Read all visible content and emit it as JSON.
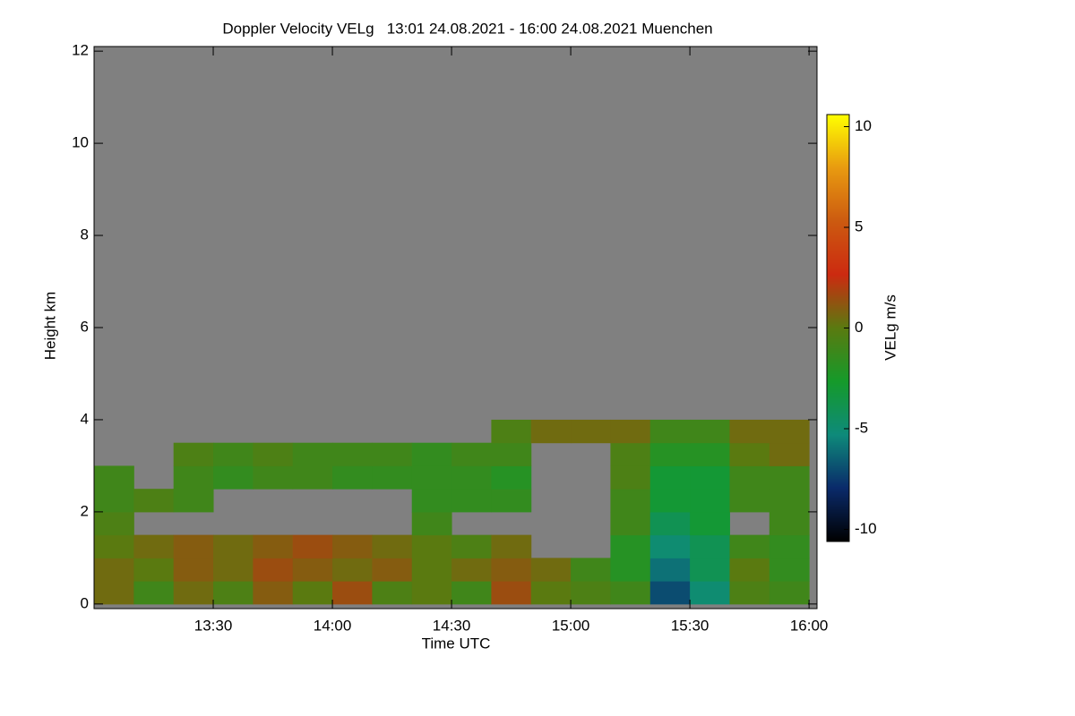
{
  "chart_data": {
    "type": "heatmap",
    "title": "Doppler Velocity VELg   13:01 24.08.2021 - 16:00 24.08.2021 Muenchen",
    "x_label": "Time UTC",
    "y_label": "Height km",
    "colorbar_label": "VELg m/s",
    "xlim": [
      780,
      962
    ],
    "xticks": [
      {
        "value": 810,
        "label": "13:30"
      },
      {
        "value": 840,
        "label": "14:00"
      },
      {
        "value": 870,
        "label": "14:30"
      },
      {
        "value": 900,
        "label": "15:00"
      },
      {
        "value": 930,
        "label": "15:30"
      },
      {
        "value": 960,
        "label": "16:00"
      }
    ],
    "ylim": [
      -0.1,
      12.1
    ],
    "yticks": [
      0,
      2,
      4,
      6,
      8,
      10,
      12
    ],
    "zlim": [
      -10.6,
      10.6
    ],
    "zticks": [
      -10,
      -5,
      0,
      5,
      10
    ],
    "background": "#808080",
    "colorscale": [
      "#000000",
      "#0a2a6a",
      "#0e8a7a",
      "#159a2a",
      "#5a7a10",
      "#cc2a10",
      "#cc5a10",
      "#e89a10",
      "#ffff00"
    ],
    "xbins": [
      780,
      790,
      800,
      810,
      820,
      830,
      840,
      850,
      860,
      870,
      880,
      890,
      900,
      910,
      920,
      930,
      940,
      950,
      960
    ],
    "ybins": [
      0,
      0.5,
      1,
      1.5,
      2,
      2.5,
      3,
      3.5,
      4
    ],
    "z": [
      [
        0.5,
        -1,
        0.5,
        -0.5,
        1,
        0,
        1.5,
        -0.5,
        0,
        -1,
        1.5,
        0,
        -0.5,
        -1,
        -7,
        -5,
        -0.5,
        -1
      ],
      [
        0.5,
        0,
        1,
        0.5,
        1.5,
        1,
        0.5,
        1,
        0,
        0.5,
        1,
        0.5,
        -1,
        -2,
        -6,
        -4,
        0,
        -1.5
      ],
      [
        0,
        0.5,
        1,
        0.5,
        1,
        1.5,
        1,
        0.5,
        0,
        -0.5,
        0.5,
        null,
        null,
        -2,
        -5,
        -4,
        -1,
        -1.5
      ],
      [
        -0.5,
        null,
        null,
        null,
        null,
        null,
        null,
        null,
        -1,
        null,
        null,
        null,
        null,
        -1,
        -4,
        -3,
        null,
        -1
      ],
      [
        -1,
        -0.5,
        -1,
        null,
        null,
        null,
        null,
        null,
        -1.5,
        -1.5,
        -1.5,
        null,
        null,
        -1,
        -3,
        -3,
        -1,
        -1
      ],
      [
        -1,
        null,
        -1,
        -1.5,
        -1,
        -1,
        -1.5,
        -1.5,
        -1.5,
        -1.5,
        -2,
        null,
        null,
        -0.5,
        -3,
        -3,
        -1,
        -1
      ],
      [
        null,
        null,
        -0.5,
        -1,
        -0.5,
        -1,
        -1,
        -1,
        -1.5,
        -1,
        -1,
        null,
        null,
        -0.5,
        -2,
        -2,
        0,
        0.5
      ],
      [
        null,
        null,
        null,
        null,
        null,
        null,
        null,
        null,
        null,
        null,
        -0.5,
        0.5,
        0.5,
        0.5,
        -1,
        -1,
        0.5,
        0.5
      ]
    ]
  }
}
